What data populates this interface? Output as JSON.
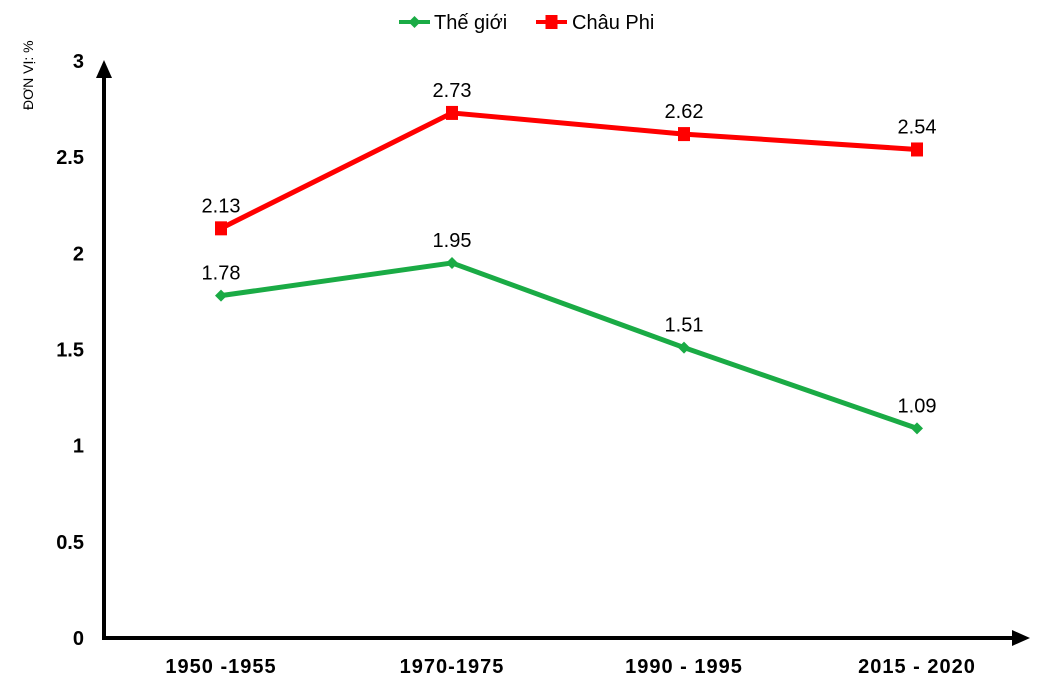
{
  "chart_data": {
    "type": "line",
    "categories": [
      "1950 -1955",
      "1970-1975",
      "1990 - 1995",
      "2015 - 2020"
    ],
    "series": [
      {
        "name": "Thế giới",
        "values": [
          1.78,
          1.95,
          1.51,
          1.09
        ],
        "color": "#1aab45",
        "marker": "diamond"
      },
      {
        "name": "Châu Phi",
        "values": [
          2.13,
          2.73,
          2.62,
          2.54
        ],
        "color": "#ff0000",
        "marker": "square"
      }
    ],
    "data_labels": [
      [
        "1.78",
        "1.95",
        "1.51",
        "1.09"
      ],
      [
        "2.13",
        "2.73",
        "2.62",
        "2.54"
      ]
    ],
    "y_ticks": [
      "0",
      "0.5",
      "1",
      "1.5",
      "2",
      "2.5",
      "3"
    ],
    "ylim": [
      0,
      3
    ],
    "ylabel": "ĐƠN VỊ: %",
    "xlabel": "",
    "title": "",
    "legend_position": "top-center",
    "grid": false
  }
}
